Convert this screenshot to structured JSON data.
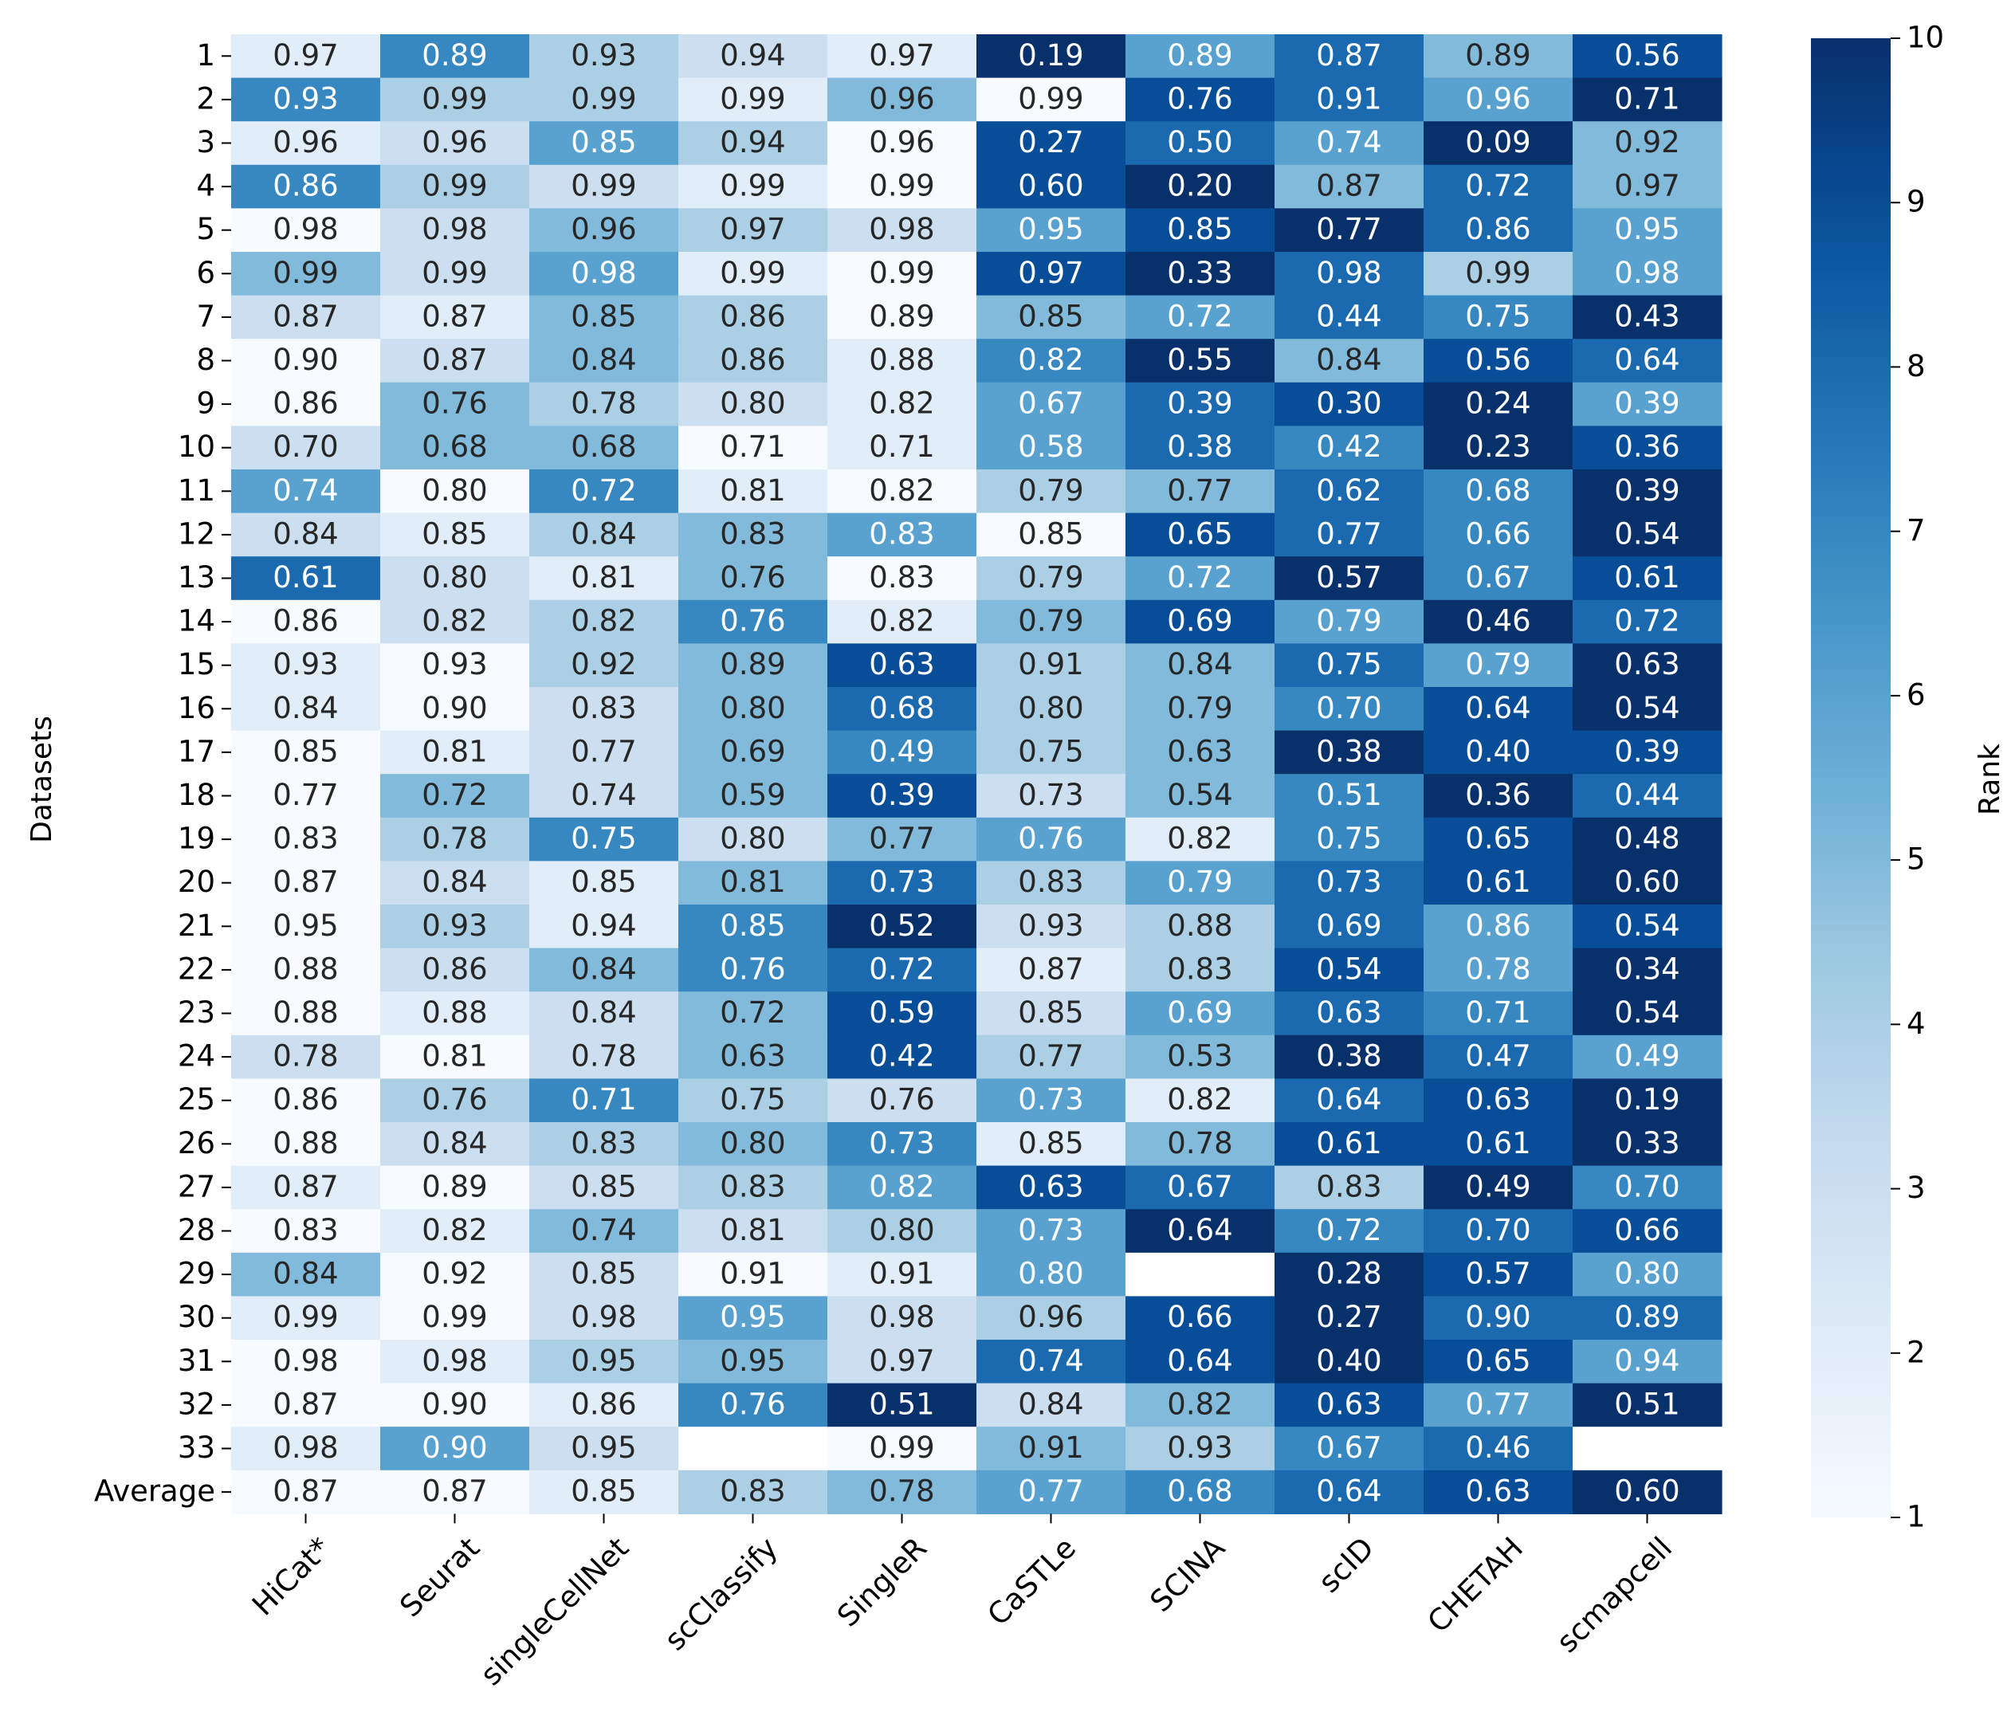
{
  "chart_data": {
    "type": "heatmap",
    "ylabel": "Datasets",
    "xlabel": "",
    "colorbar": {
      "label": "Rank",
      "min": 1,
      "max": 10,
      "ticks": [
        "1",
        "2",
        "3",
        "4",
        "5",
        "6",
        "7",
        "8",
        "9",
        "10"
      ]
    },
    "columns": [
      "HiCat*",
      "Seurat",
      "singleCellNet",
      "scClassify",
      "SingleR",
      "CaSTLe",
      "SCINA",
      "scID",
      "CHETAH",
      "scmapcell"
    ],
    "rows": [
      "1",
      "2",
      "3",
      "4",
      "5",
      "6",
      "7",
      "8",
      "9",
      "10",
      "11",
      "12",
      "13",
      "14",
      "15",
      "16",
      "17",
      "18",
      "19",
      "20",
      "21",
      "22",
      "23",
      "24",
      "25",
      "26",
      "27",
      "28",
      "29",
      "30",
      "31",
      "32",
      "33",
      "Average"
    ],
    "values": [
      [
        "0.97",
        "0.89",
        "0.93",
        "0.94",
        "0.97",
        "0.19",
        "0.89",
        "0.87",
        "0.89",
        "0.56"
      ],
      [
        "0.93",
        "0.99",
        "0.99",
        "0.99",
        "0.96",
        "0.99",
        "0.76",
        "0.91",
        "0.96",
        "0.71"
      ],
      [
        "0.96",
        "0.96",
        "0.85",
        "0.94",
        "0.96",
        "0.27",
        "0.50",
        "0.74",
        "0.09",
        "0.92"
      ],
      [
        "0.86",
        "0.99",
        "0.99",
        "0.99",
        "0.99",
        "0.60",
        "0.20",
        "0.87",
        "0.72",
        "0.97"
      ],
      [
        "0.98",
        "0.98",
        "0.96",
        "0.97",
        "0.98",
        "0.95",
        "0.85",
        "0.77",
        "0.86",
        "0.95"
      ],
      [
        "0.99",
        "0.99",
        "0.98",
        "0.99",
        "0.99",
        "0.97",
        "0.33",
        "0.98",
        "0.99",
        "0.98"
      ],
      [
        "0.87",
        "0.87",
        "0.85",
        "0.86",
        "0.89",
        "0.85",
        "0.72",
        "0.44",
        "0.75",
        "0.43"
      ],
      [
        "0.90",
        "0.87",
        "0.84",
        "0.86",
        "0.88",
        "0.82",
        "0.55",
        "0.84",
        "0.56",
        "0.64"
      ],
      [
        "0.86",
        "0.76",
        "0.78",
        "0.80",
        "0.82",
        "0.67",
        "0.39",
        "0.30",
        "0.24",
        "0.39"
      ],
      [
        "0.70",
        "0.68",
        "0.68",
        "0.71",
        "0.71",
        "0.58",
        "0.38",
        "0.42",
        "0.23",
        "0.36"
      ],
      [
        "0.74",
        "0.80",
        "0.72",
        "0.81",
        "0.82",
        "0.79",
        "0.77",
        "0.62",
        "0.68",
        "0.39"
      ],
      [
        "0.84",
        "0.85",
        "0.84",
        "0.83",
        "0.83",
        "0.85",
        "0.65",
        "0.77",
        "0.66",
        "0.54"
      ],
      [
        "0.61",
        "0.80",
        "0.81",
        "0.76",
        "0.83",
        "0.79",
        "0.72",
        "0.57",
        "0.67",
        "0.61"
      ],
      [
        "0.86",
        "0.82",
        "0.82",
        "0.76",
        "0.82",
        "0.79",
        "0.69",
        "0.79",
        "0.46",
        "0.72"
      ],
      [
        "0.93",
        "0.93",
        "0.92",
        "0.89",
        "0.63",
        "0.91",
        "0.84",
        "0.75",
        "0.79",
        "0.63"
      ],
      [
        "0.84",
        "0.90",
        "0.83",
        "0.80",
        "0.68",
        "0.80",
        "0.79",
        "0.70",
        "0.64",
        "0.54"
      ],
      [
        "0.85",
        "0.81",
        "0.77",
        "0.69",
        "0.49",
        "0.75",
        "0.63",
        "0.38",
        "0.40",
        "0.39"
      ],
      [
        "0.77",
        "0.72",
        "0.74",
        "0.59",
        "0.39",
        "0.73",
        "0.54",
        "0.51",
        "0.36",
        "0.44"
      ],
      [
        "0.83",
        "0.78",
        "0.75",
        "0.80",
        "0.77",
        "0.76",
        "0.82",
        "0.75",
        "0.65",
        "0.48"
      ],
      [
        "0.87",
        "0.84",
        "0.85",
        "0.81",
        "0.73",
        "0.83",
        "0.79",
        "0.73",
        "0.61",
        "0.60"
      ],
      [
        "0.95",
        "0.93",
        "0.94",
        "0.85",
        "0.52",
        "0.93",
        "0.88",
        "0.69",
        "0.86",
        "0.54"
      ],
      [
        "0.88",
        "0.86",
        "0.84",
        "0.76",
        "0.72",
        "0.87",
        "0.83",
        "0.54",
        "0.78",
        "0.34"
      ],
      [
        "0.88",
        "0.88",
        "0.84",
        "0.72",
        "0.59",
        "0.85",
        "0.69",
        "0.63",
        "0.71",
        "0.54"
      ],
      [
        "0.78",
        "0.81",
        "0.78",
        "0.63",
        "0.42",
        "0.77",
        "0.53",
        "0.38",
        "0.47",
        "0.49"
      ],
      [
        "0.86",
        "0.76",
        "0.71",
        "0.75",
        "0.76",
        "0.73",
        "0.82",
        "0.64",
        "0.63",
        "0.19"
      ],
      [
        "0.88",
        "0.84",
        "0.83",
        "0.80",
        "0.73",
        "0.85",
        "0.78",
        "0.61",
        "0.61",
        "0.33"
      ],
      [
        "0.87",
        "0.89",
        "0.85",
        "0.83",
        "0.82",
        "0.63",
        "0.67",
        "0.83",
        "0.49",
        "0.70"
      ],
      [
        "0.83",
        "0.82",
        "0.74",
        "0.81",
        "0.80",
        "0.73",
        "0.64",
        "0.72",
        "0.70",
        "0.66"
      ],
      [
        "0.84",
        "0.92",
        "0.85",
        "0.91",
        "0.91",
        "0.80",
        null,
        "0.28",
        "0.57",
        "0.80"
      ],
      [
        "0.99",
        "0.99",
        "0.98",
        "0.95",
        "0.98",
        "0.96",
        "0.66",
        "0.27",
        "0.90",
        "0.89"
      ],
      [
        "0.98",
        "0.98",
        "0.95",
        "0.95",
        "0.97",
        "0.74",
        "0.64",
        "0.40",
        "0.65",
        "0.94"
      ],
      [
        "0.87",
        "0.90",
        "0.86",
        "0.76",
        "0.51",
        "0.84",
        "0.82",
        "0.63",
        "0.77",
        "0.51"
      ],
      [
        "0.98",
        "0.90",
        "0.95",
        null,
        "0.99",
        "0.91",
        "0.93",
        "0.67",
        "0.46",
        null
      ],
      [
        "0.87",
        "0.87",
        "0.85",
        "0.83",
        "0.78",
        "0.77",
        "0.68",
        "0.64",
        "0.63",
        "0.60"
      ]
    ],
    "ranks": [
      [
        2,
        7,
        4,
        3,
        2,
        10,
        6,
        8,
        5,
        9
      ],
      [
        7,
        4,
        4,
        2,
        5,
        1,
        9,
        8,
        6,
        10
      ],
      [
        2,
        3,
        6,
        4,
        1,
        9,
        8,
        6,
        10,
        5
      ],
      [
        7,
        4,
        3,
        2,
        1,
        9,
        10,
        5,
        8,
        5
      ],
      [
        1,
        3,
        5,
        4,
        3,
        6,
        9,
        10,
        8,
        6
      ],
      [
        5,
        3,
        6,
        2,
        1,
        9,
        10,
        8,
        4,
        6
      ],
      [
        3,
        2,
        5,
        4,
        1,
        5,
        6,
        8,
        7,
        10
      ],
      [
        1,
        3,
        5,
        4,
        2,
        7,
        10,
        5,
        9,
        8
      ],
      [
        1,
        5,
        4,
        3,
        2,
        6,
        8,
        9,
        10,
        6
      ],
      [
        3,
        5,
        5,
        1,
        2,
        6,
        8,
        7,
        10,
        9
      ],
      [
        6,
        1,
        7,
        2,
        1,
        4,
        5,
        8,
        7,
        10
      ],
      [
        3,
        2,
        4,
        5,
        6,
        1,
        9,
        8,
        7,
        10
      ],
      [
        8,
        3,
        2,
        5,
        1,
        4,
        6,
        10,
        7,
        9
      ],
      [
        1,
        3,
        4,
        7,
        2,
        5,
        9,
        6,
        10,
        8
      ],
      [
        2,
        1,
        4,
        5,
        9,
        4,
        5,
        8,
        6,
        10
      ],
      [
        2,
        1,
        3,
        5,
        8,
        4,
        5,
        7,
        9,
        10
      ],
      [
        1,
        2,
        3,
        5,
        7,
        4,
        5,
        10,
        9,
        9
      ],
      [
        1,
        5,
        3,
        5,
        9,
        3,
        5,
        7,
        10,
        8
      ],
      [
        1,
        4,
        7,
        3,
        5,
        6,
        2,
        7,
        9,
        10
      ],
      [
        1,
        3,
        2,
        5,
        8,
        4,
        6,
        8,
        9,
        10
      ],
      [
        1,
        4,
        2,
        7,
        10,
        3,
        4,
        8,
        6,
        9
      ],
      [
        1,
        3,
        5,
        7,
        8,
        2,
        4,
        9,
        6,
        10
      ],
      [
        1,
        2,
        3,
        5,
        9,
        3,
        6,
        8,
        7,
        10
      ],
      [
        3,
        1,
        3,
        5,
        9,
        4,
        5,
        10,
        8,
        6
      ],
      [
        1,
        4,
        7,
        4,
        3,
        6,
        2,
        8,
        9,
        10
      ],
      [
        1,
        3,
        4,
        5,
        7,
        2,
        5,
        9,
        9,
        10
      ],
      [
        2,
        1,
        3,
        4,
        6,
        9,
        8,
        4,
        10,
        7
      ],
      [
        1,
        2,
        5,
        3,
        4,
        6,
        10,
        7,
        8,
        9
      ],
      [
        5,
        1,
        3,
        1,
        2,
        6,
        1,
        10,
        9,
        6
      ],
      [
        2,
        1,
        3,
        6,
        3,
        4,
        9,
        10,
        8,
        8
      ],
      [
        1,
        2,
        4,
        5,
        3,
        8,
        9,
        10,
        9,
        6
      ],
      [
        1,
        1,
        2,
        7,
        10,
        3,
        5,
        9,
        6,
        10
      ],
      [
        2,
        6,
        3,
        1,
        1,
        5,
        4,
        7,
        8,
        1
      ],
      [
        1,
        1,
        2,
        4,
        5,
        6,
        7,
        8,
        9,
        10
      ]
    ]
  }
}
